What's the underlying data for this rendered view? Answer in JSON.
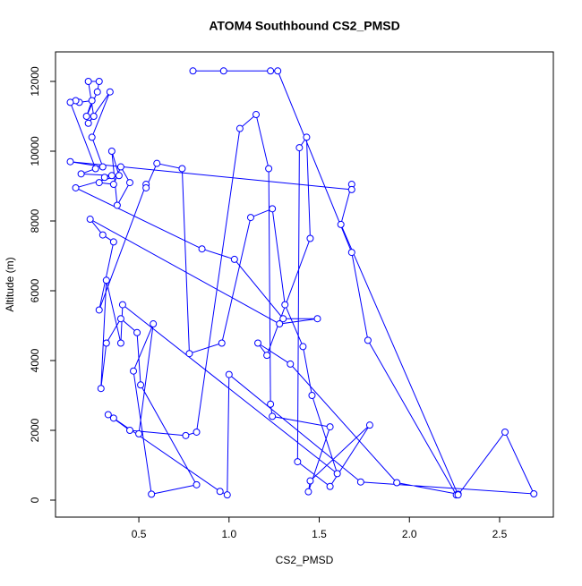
{
  "chart_data": {
    "type": "line",
    "title": "ATOM4 Southbound CS2_PMSD",
    "x_label": "CS2_PMSD",
    "y_label": "Altitude (m)",
    "color": "#0000ff",
    "markers": true,
    "grid": false,
    "xlim": [
      0.038,
      2.798
    ],
    "ylim": [
      -487,
      12846
    ],
    "xticks": [
      0.5,
      {
        "value": 1,
        "label": "1.0"
      },
      1.5,
      {
        "value": 2,
        "label": "2.0"
      },
      2.5
    ],
    "yticks": [
      0,
      2000,
      4000,
      6000,
      8000,
      10000,
      12000
    ],
    "x": [
      0.8,
      0.97,
      1.23,
      1.27,
      1.68,
      1.77,
      2.26,
      2.27,
      1.93,
      1.34,
      1.16,
      1.21,
      1.45,
      1.43,
      1.39,
      1.38,
      1.56,
      1.78,
      1.45,
      1.44,
      1.56,
      1.24,
      1.23,
      1.22,
      1.15,
      1.06,
      0.82,
      0.76,
      0.45,
      0.33,
      0.36,
      0.95,
      0.99,
      1.0,
      1.73,
      2.69,
      2.53,
      2.27,
      1.62,
      1.68,
      1.68,
      0.12,
      0.3,
      0.24,
      0.34,
      0.22,
      0.25,
      0.22,
      0.28,
      0.27,
      0.21,
      0.24,
      0.17,
      0.15,
      0.12,
      0.26,
      0.18,
      0.35,
      0.31,
      0.28,
      0.36,
      0.4,
      0.45,
      0.38,
      0.35,
      0.39,
      0.15,
      0.85,
      1.03,
      1.3,
      1.49,
      1.28,
      0.23,
      0.3,
      0.36,
      0.28,
      0.54,
      0.54,
      0.6,
      0.74,
      0.78,
      0.96,
      1.12,
      1.24,
      1.31,
      1.41,
      1.46,
      1.6,
      0.41,
      0.4,
      0.32,
      0.29,
      0.32,
      0.4,
      0.49,
      0.51,
      0.82,
      0.57,
      0.47,
      0.58,
      0.5
    ],
    "values": [
      12300,
      12300,
      12300,
      12300,
      7100,
      4580,
      150,
      170,
      500,
      3900,
      4500,
      4150,
      7500,
      10400,
      10100,
      1100,
      390,
      2150,
      550,
      240,
      2100,
      2400,
      2750,
      9500,
      11050,
      10650,
      1950,
      1850,
      2000,
      2450,
      2350,
      250,
      150,
      3600,
      520,
      180,
      1950,
      150,
      7900,
      9050,
      8900,
      9700,
      9550,
      10400,
      11700,
      10800,
      11000,
      12000,
      12000,
      11700,
      11000,
      11450,
      11400,
      11450,
      11400,
      9500,
      9350,
      9300,
      9250,
      9100,
      9050,
      9550,
      9100,
      8450,
      10000,
      9300,
      8950,
      7200,
      6900,
      5200,
      5200,
      5050,
      8050,
      7600,
      7400,
      5450,
      9050,
      8950,
      9650,
      9500,
      4200,
      4500,
      8100,
      8350,
      5600,
      4400,
      3000,
      760,
      5600,
      4500,
      6300,
      3200,
      4500,
      5200,
      4800,
      3300,
      440,
      170,
      3700,
      5050,
      1900
    ]
  }
}
